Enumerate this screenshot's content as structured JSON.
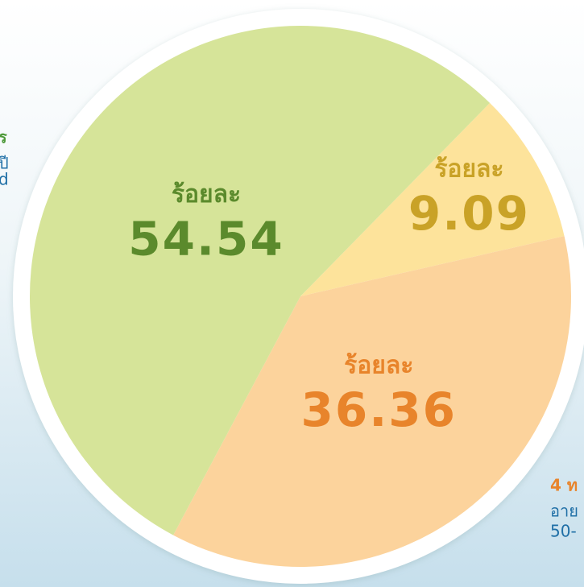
{
  "chart_data": {
    "type": "pie",
    "caption": "ร้อยละ",
    "categories": [
      null,
      null,
      null
    ],
    "values": [
      9.09,
      36.36,
      54.54
    ],
    "colors": [
      "#fde39b",
      "#fcd39c",
      "#d6e499"
    ],
    "label_colors": [
      "#c9a227",
      "#e8842b",
      "#5b8a2c"
    ],
    "annotations": {
      "left": [
        "ร",
        "ปี",
        "d"
      ],
      "right": [
        "4 ท",
        "อาย",
        "50-"
      ]
    }
  }
}
